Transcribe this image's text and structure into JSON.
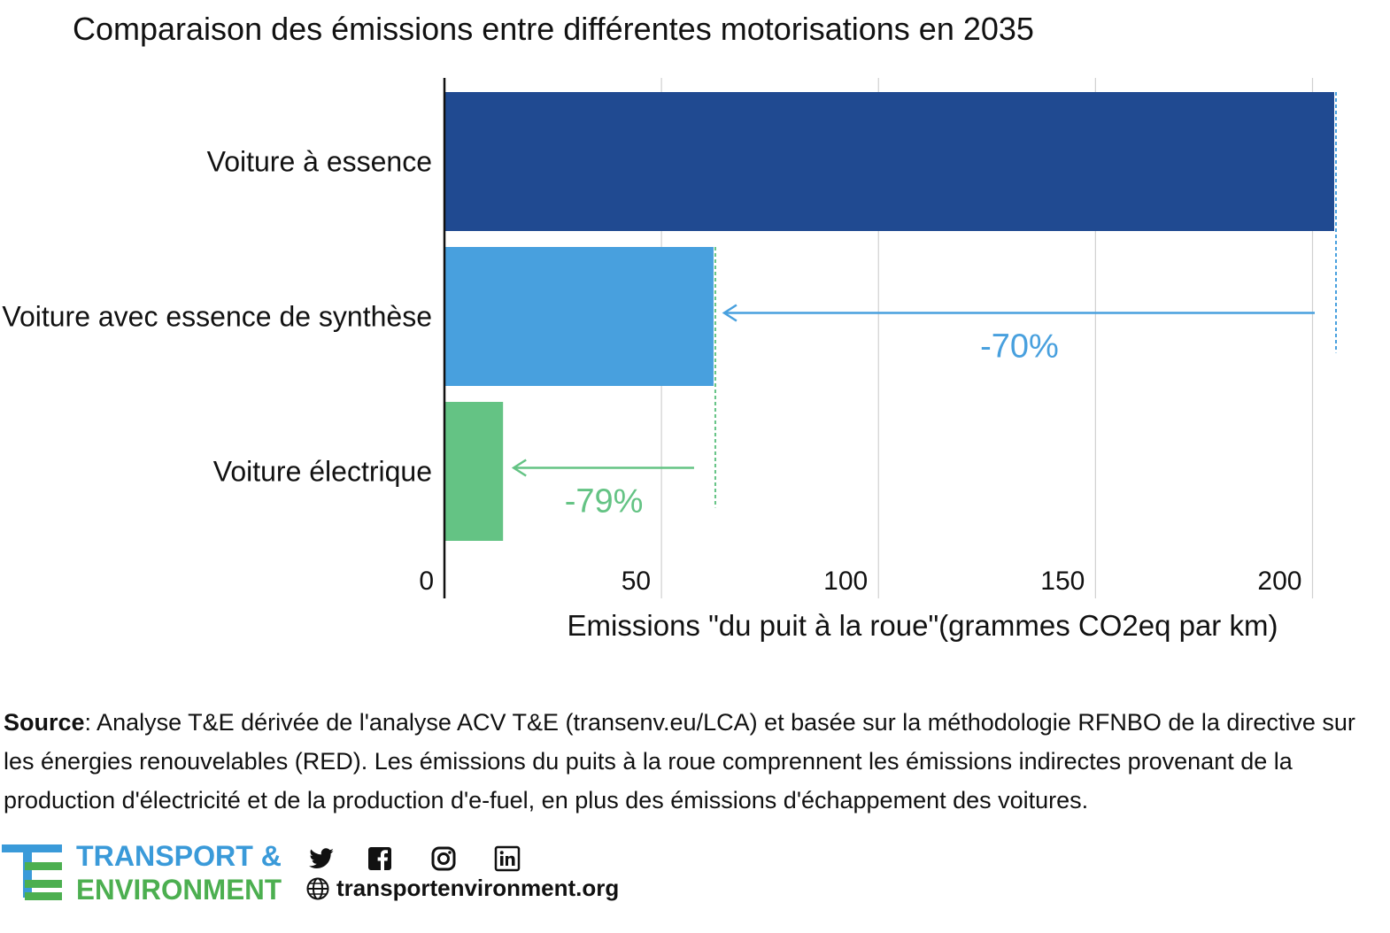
{
  "chart_data": {
    "type": "bar",
    "orientation": "horizontal",
    "title": "Comparaison des émissions entre différentes motorisations en 2035",
    "xlabel": "Emissions \"du puit à la roue\"(grammes CO2eq par km)",
    "ylabel": "",
    "categories": [
      "Voiture à essence",
      "Voiture avec essence de synthèse",
      "Voiture électrique"
    ],
    "values": [
      205,
      62,
      13.5
    ],
    "colors": [
      "#204a91",
      "#48a0de",
      "#64c384"
    ],
    "xlim": [
      0,
      205
    ],
    "xticks": [
      0,
      50,
      100,
      150,
      200
    ],
    "xtick_labels": [
      "0",
      "50",
      "100",
      "150",
      "200"
    ],
    "grid": "vertical",
    "annotations": [
      {
        "text": "-70%",
        "from": "Voiture à essence",
        "to": "Voiture avec essence de synthèse",
        "color": "#48a0de"
      },
      {
        "text": "-79%",
        "from": "Voiture avec essence de synthèse",
        "to": "Voiture électrique",
        "color": "#64c384"
      }
    ]
  },
  "footer": {
    "source_label": "Source",
    "source_text": ": Analyse T&E dérivée de l'analyse ACV T&E (transenv.eu/LCA) et basée sur la méthodologie RFNBO de la directive sur les énergies renouvelables (RED). Les émissions du puits à la roue comprennent les émissions indirectes provenant de la production d'électricité et de la production d'e-fuel, en plus des émissions d'échappement des voitures.",
    "logo_line1": "TRANSPORT &",
    "logo_line2": "ENVIRONMENT",
    "logo_color1": "#3a9ad9",
    "logo_color2": "#4caf50",
    "website": "transportenvironment.org",
    "social_icons": [
      "twitter-icon",
      "facebook-icon",
      "instagram-icon",
      "linkedin-icon"
    ]
  }
}
